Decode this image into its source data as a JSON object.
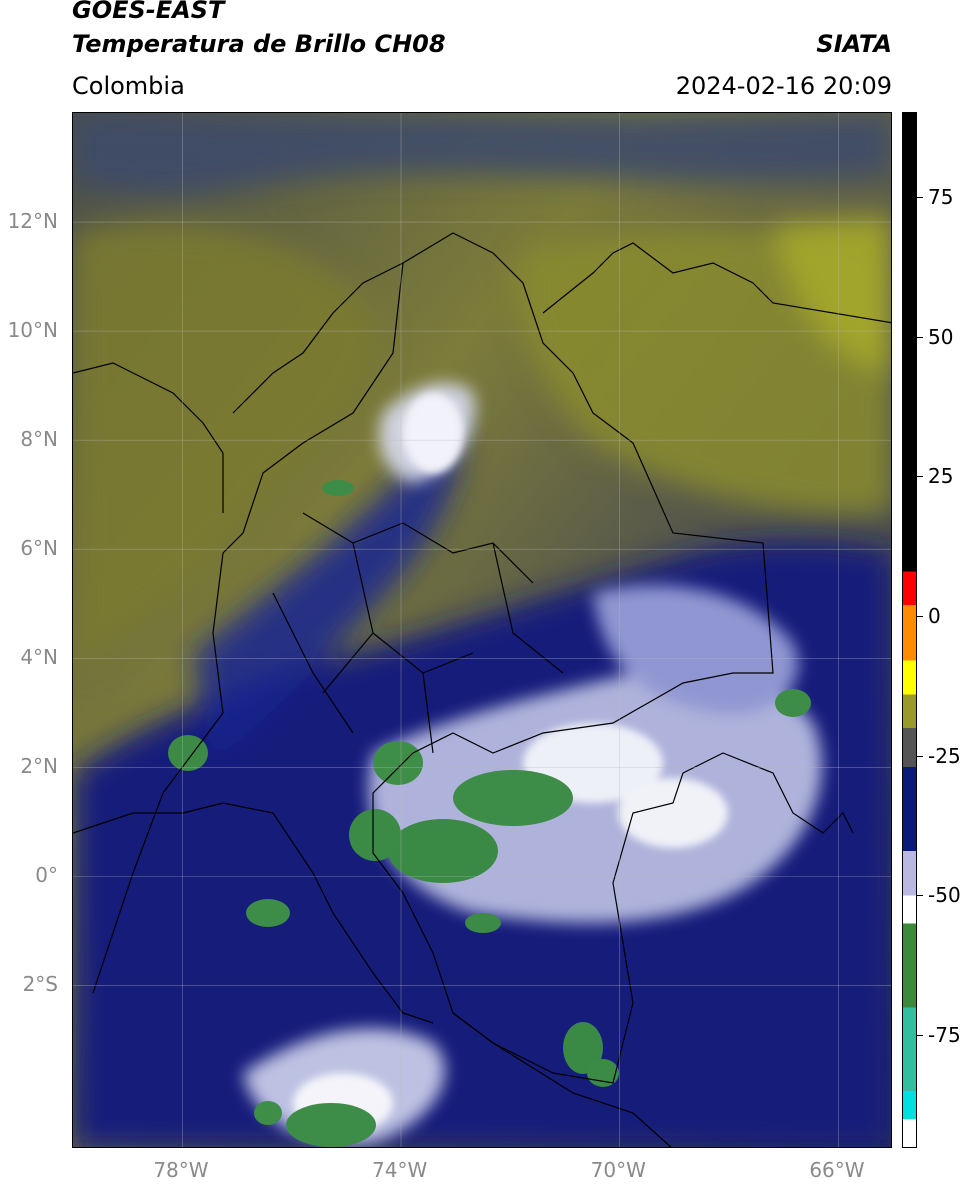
{
  "header": {
    "satellite": "GOES-EAST",
    "product": "Temperatura de Brillo CH08",
    "region": "Colombia",
    "agency": "SIATA",
    "timestamp": "2024-02-16 20:09"
  },
  "map": {
    "lon_range": [
      -80,
      -65
    ],
    "lat_range": [
      -5,
      14
    ],
    "x_ticks": [
      {
        "lon": -78,
        "label": "78°W"
      },
      {
        "lon": -74,
        "label": "74°W"
      },
      {
        "lon": -70,
        "label": "70°W"
      },
      {
        "lon": -66,
        "label": "66°W"
      }
    ],
    "y_ticks": [
      {
        "lat": 12,
        "label": "12°N"
      },
      {
        "lat": 10,
        "label": "10°N"
      },
      {
        "lat": 8,
        "label": "8°N"
      },
      {
        "lat": 6,
        "label": "6°N"
      },
      {
        "lat": 4,
        "label": "4°N"
      },
      {
        "lat": 2,
        "label": "2°N"
      },
      {
        "lat": 0,
        "label": "0°"
      },
      {
        "lat": -2,
        "label": "2°S"
      }
    ],
    "grid": true
  },
  "colorbar": {
    "range": [
      -95,
      90
    ],
    "ticks": [
      {
        "value": 75,
        "label": "75"
      },
      {
        "value": 50,
        "label": "50"
      },
      {
        "value": 25,
        "label": "25"
      },
      {
        "value": 0,
        "label": "0"
      },
      {
        "value": -25,
        "label": "-25"
      },
      {
        "value": -50,
        "label": "-50"
      },
      {
        "value": -75,
        "label": "-75"
      }
    ],
    "colors": {
      "black": "#000000",
      "red": "#ff0000",
      "orange": "#ff8c00",
      "yellow": "#ffff00",
      "olive": "#9a9a2a",
      "gray": "#555555",
      "navy": "#0a1a7a",
      "lavender": "#b8b8e0",
      "white": "#ffffff",
      "green": "#3a8a3a",
      "teal": "#30c0a0",
      "cyan": "#00e0e0"
    }
  }
}
